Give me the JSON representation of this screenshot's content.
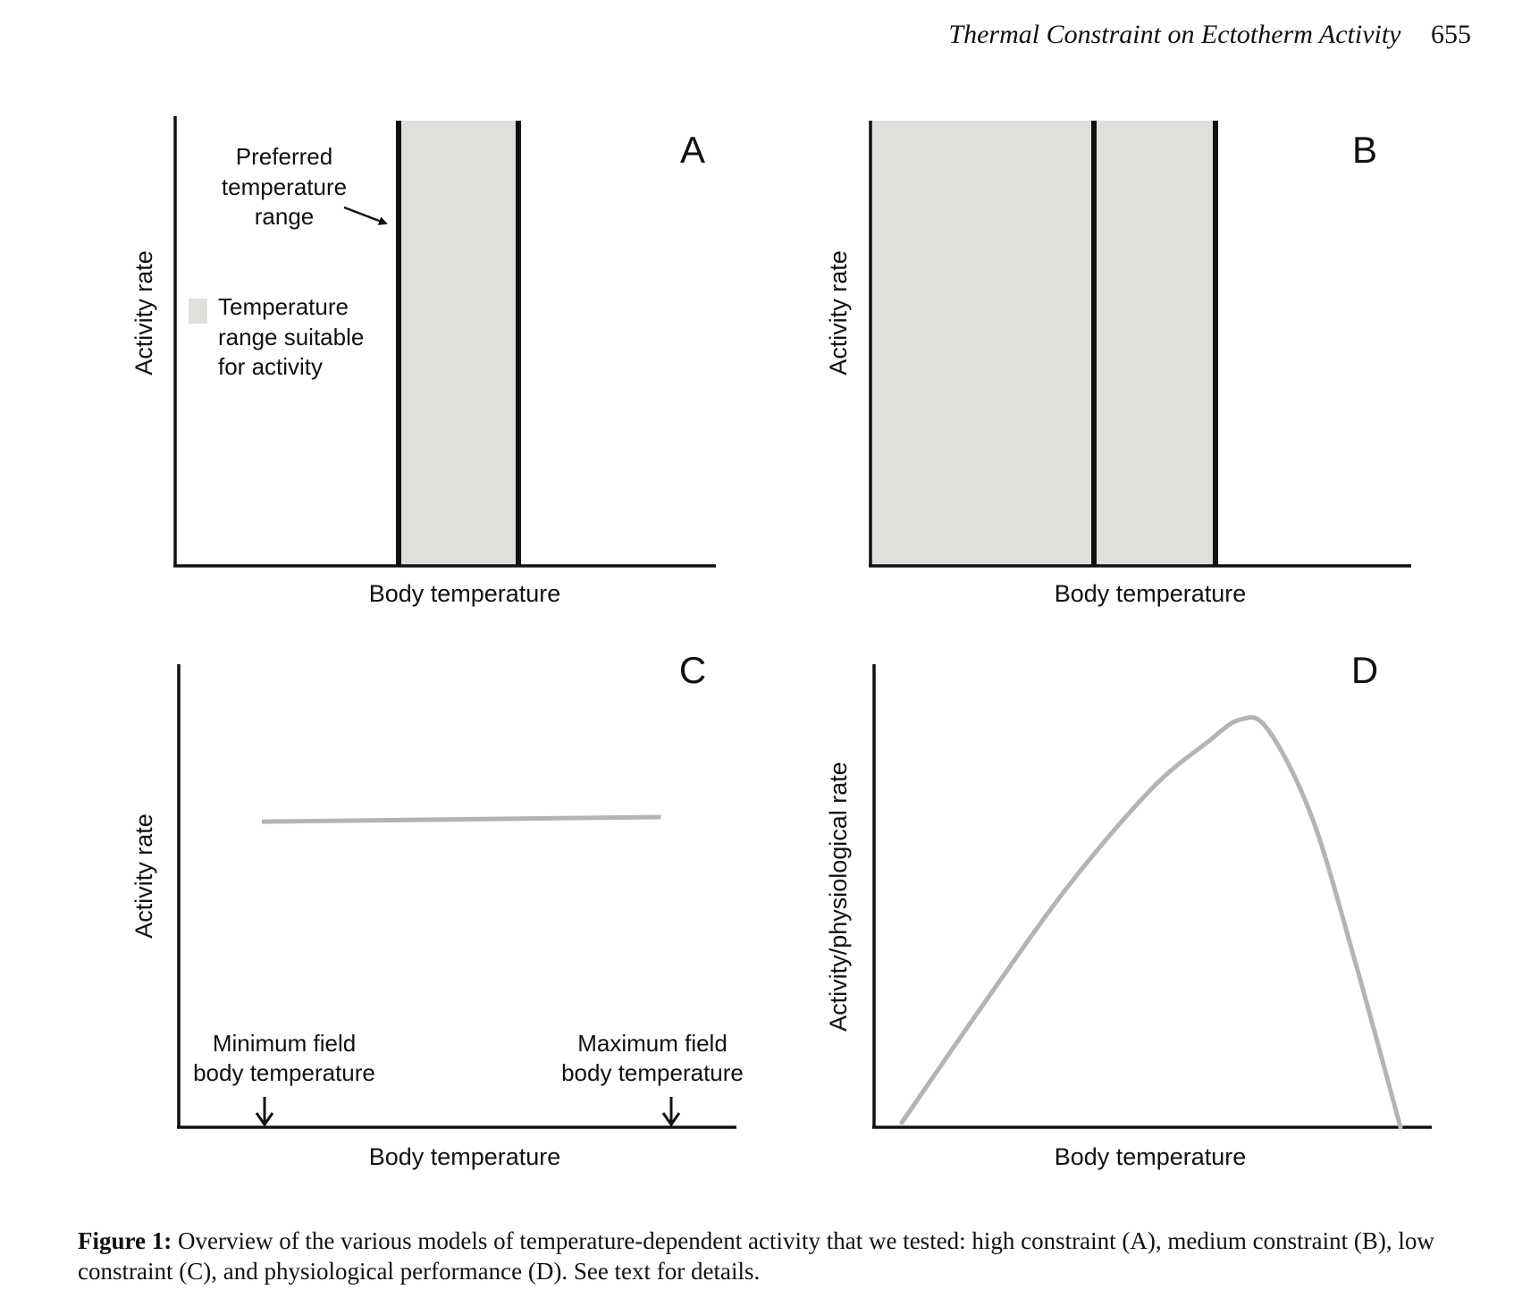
{
  "header": {
    "running_title": "Thermal Constraint on Ectotherm Activity",
    "page_number": "655"
  },
  "colors": {
    "axis": "#111111",
    "band": "#dfdfdb",
    "curve": "#b4b4b4"
  },
  "chart_data": [
    {
      "panel": "A",
      "type": "area",
      "xlabel": "Body temperature",
      "ylabel": "Activity rate",
      "annotation": "Preferred temperature range",
      "annotation_lines": [
        "Preferred",
        "temperature",
        "range"
      ],
      "legend_lines": [
        "Temperature",
        "range suitable",
        "for activity"
      ],
      "preferred_range": [
        0.41,
        0.63
      ],
      "suitable_range": [
        0.41,
        0.63
      ]
    },
    {
      "panel": "B",
      "type": "area",
      "xlabel": "Body temperature",
      "ylabel": "Activity rate",
      "preferred_range": [
        0.41,
        0.63
      ],
      "suitable_range": [
        0.0,
        0.63
      ]
    },
    {
      "panel": "C",
      "type": "line",
      "xlabel": "Body temperature",
      "ylabel": "Activity rate",
      "x": [
        0.15,
        0.87
      ],
      "y": [
        0.66,
        0.67
      ],
      "min_marker_lines": [
        "Minimum field",
        "body temperature"
      ],
      "max_marker_lines": [
        "Maximum field",
        "body temperature"
      ]
    },
    {
      "panel": "D",
      "type": "line",
      "xlabel": "Body temperature",
      "ylabel": "Activity/physiological rate",
      "x": [
        0.05,
        0.2,
        0.35,
        0.5,
        0.6,
        0.66,
        0.71,
        0.79,
        0.87,
        0.95
      ],
      "y": [
        0.01,
        0.27,
        0.52,
        0.73,
        0.83,
        0.88,
        0.86,
        0.67,
        0.35,
        0.0
      ]
    }
  ],
  "caption": {
    "label": "Figure 1:",
    "text": "Overview of the various models of temperature-dependent activity that we tested: high constraint (A), medium constraint (B), low constraint (C), and physiological performance (D). See text for details."
  }
}
